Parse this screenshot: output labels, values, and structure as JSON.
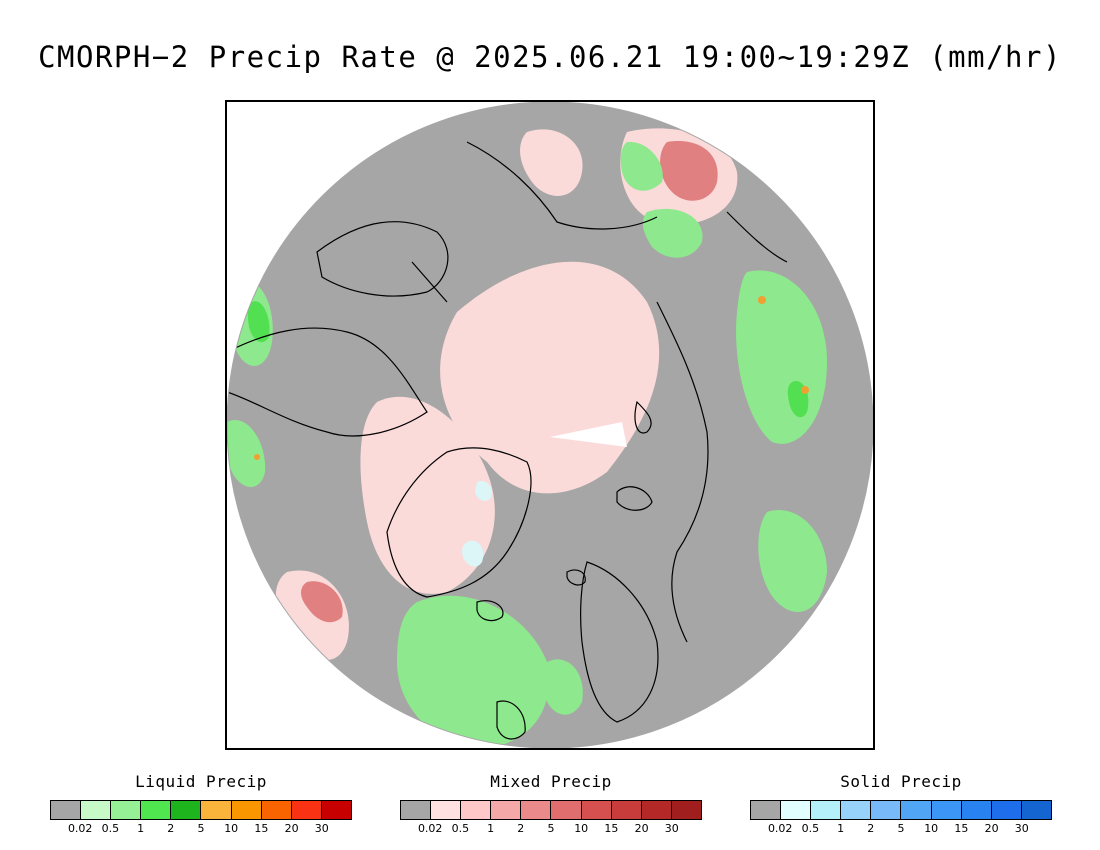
{
  "title": "CMORPH−2 Precip Rate @ 2025.06.21 19:00~19:29Z (mm/hr)",
  "map": {
    "projection": "polar-stereographic-north",
    "colors": {
      "no_precip": "#a6a6a6",
      "frame": "#000000",
      "coastline": "#000000",
      "liquid_light": "#bff7bf",
      "liquid_mid": "#8ee88e",
      "liquid_strong": "#52e052",
      "mixed_light": "#fbdada",
      "mixed_mid": "#f4b5b5",
      "mixed_strong": "#e08080",
      "solid_light": "#dcf6f8",
      "heavy_orange": "#f0a030"
    }
  },
  "legends": [
    {
      "title": "Liquid Precip",
      "colors": [
        "#a6a6a6",
        "#c8fac8",
        "#96f096",
        "#50e650",
        "#1eb41e",
        "#fab43c",
        "#fa9600",
        "#fa6400",
        "#fa3214",
        "#c80000"
      ],
      "ticks": [
        "0.02",
        "0.5",
        "1",
        "2",
        "5",
        "10",
        "15",
        "20",
        "30"
      ]
    },
    {
      "title": "Mixed Precip",
      "colors": [
        "#a6a6a6",
        "#ffe1e1",
        "#ffc8c8",
        "#f4a8a8",
        "#ea8a8a",
        "#e06e6e",
        "#d65050",
        "#c83c3c",
        "#b42828",
        "#a01e1e"
      ],
      "ticks": [
        "0.02",
        "0.5",
        "1",
        "2",
        "5",
        "10",
        "15",
        "20",
        "30"
      ]
    },
    {
      "title": "Solid Precip",
      "colors": [
        "#a6a6a6",
        "#e1ffff",
        "#b4f0fa",
        "#96d2fa",
        "#78b9fa",
        "#50a5f5",
        "#3c96f5",
        "#2882f0",
        "#1e6eeb",
        "#1464d2"
      ],
      "ticks": [
        "0.02",
        "0.5",
        "1",
        "2",
        "5",
        "10",
        "15",
        "20",
        "30"
      ]
    }
  ]
}
